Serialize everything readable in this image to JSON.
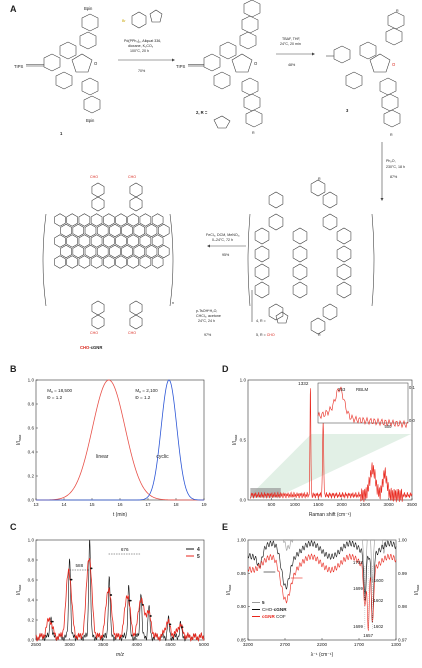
{
  "panels": {
    "a": "A",
    "b": "B",
    "c": "C",
    "d": "D",
    "e": "E"
  },
  "scheme": {
    "tips1": "TIPS",
    "tips2": "TIPS",
    "bpin_top": "Bpin",
    "bpin_bottom": "Bpin",
    "reagent_br": "Br",
    "step1": [
      "Pd(PPh₃)₄, Aliquat 336,",
      "dioxane, K₂CO₃",
      "100°C, 20 h"
    ],
    "step1_yield": "70%",
    "step2": [
      "TBAF, THF,",
      "24°C, 20 min"
    ],
    "step2_yield": "48%",
    "step3": [
      "Ph₂O,",
      "230°C, 18 h"
    ],
    "step3_yield": "87%",
    "step4": [
      "FeCl₃, DCM, MeNO₂,",
      "0–24°C, 72 h"
    ],
    "step4_yield": "95%",
    "step5": [
      "p-TsOH*H₂O,",
      "CHCl₃, acetone",
      "24°C, 24 h"
    ],
    "step5_yield": "97%",
    "cmpd1": "1",
    "cmpd2": "2, R =",
    "cmpd3": "3",
    "r_top": "R",
    "r_bottom": "R",
    "r_c2": "R",
    "r_c2_bottom": "R",
    "r_c3": "R",
    "r_c3_bottom": "R",
    "cmpd4": "4, R =",
    "cmpd5_prefix": "5, R = ",
    "cmpd5_cho": "CHO",
    "cho": "CHO",
    "product": "CHO-cGNR",
    "product_red": "CHO",
    "product_black": "-cGNR",
    "o_label": "O",
    "n_label": "n"
  },
  "chart_data": [
    {
      "panel": "B",
      "type": "line",
      "xlabel": "t (min)",
      "ylabel": "I/I",
      "ylabel_sub": "max",
      "xlim": [
        13,
        19
      ],
      "ylim": [
        0,
        1.0
      ],
      "xticks": [
        "13",
        "14",
        "15",
        "16",
        "17",
        "18",
        "19"
      ],
      "yticks": [
        "0.0",
        "0.2",
        "0.4",
        "0.6",
        "0.8",
        "1.0"
      ],
      "annotations": [
        {
          "line1": "M",
          "sub": "n",
          "line1_rest": " = 18,500",
          "line2": "Đ = 1.2"
        },
        {
          "line1": "M",
          "sub": "n",
          "line1_rest": " = 2,100",
          "line2": "Đ = 1.2"
        }
      ],
      "series": [
        {
          "name": "linear",
          "color": "#e8524a",
          "center": 15.6,
          "width": 0.58,
          "x": [
            13.0,
            13.5,
            14.0,
            14.5,
            15.0,
            15.3,
            15.6,
            15.9,
            16.2,
            16.5,
            16.8,
            17.1,
            17.4,
            17.8
          ],
          "y": [
            0.0,
            0.02,
            0.08,
            0.27,
            0.6,
            0.87,
            1.0,
            0.92,
            0.67,
            0.36,
            0.14,
            0.04,
            0.01,
            0.0
          ]
        },
        {
          "name": "cyclic",
          "color": "#2c56d6",
          "center": 17.75,
          "width": 0.28,
          "x": [
            16.9,
            17.1,
            17.3,
            17.5,
            17.65,
            17.75,
            17.85,
            18.0,
            18.2,
            18.4,
            18.6
          ],
          "y": [
            0.0,
            0.03,
            0.15,
            0.55,
            0.88,
            1.0,
            0.92,
            0.6,
            0.2,
            0.04,
            0.0
          ]
        }
      ]
    },
    {
      "panel": "C",
      "type": "line",
      "xlabel": "m/z",
      "ylabel": "I/I",
      "ylabel_sub": "max",
      "xlim": [
        2500,
        5000
      ],
      "ylim": [
        0,
        1.0
      ],
      "xticks": [
        "2500",
        "3000",
        "3500",
        "4000",
        "4500",
        "5000"
      ],
      "yticks": [
        "0.0",
        "0.2",
        "0.4",
        "0.6",
        "0.8",
        "1.0"
      ],
      "annotations": [
        {
          "text": "588"
        },
        {
          "text": "676"
        }
      ],
      "series": [
        {
          "name": "4",
          "color": "#111111",
          "peaks": [
            2720,
            3000,
            3298,
            3590,
            3880,
            4060,
            4180,
            4470,
            4650
          ]
        },
        {
          "name": "5",
          "color": "#e8261c",
          "peaks": [
            2700,
            2988,
            3290,
            3580,
            3860,
            4060,
            4170,
            4460,
            4640
          ]
        }
      ]
    },
    {
      "panel": "D",
      "type": "line",
      "xlabel": "Raman shift (cm⁻¹)",
      "ylabel": "I/I",
      "ylabel_sub": "max",
      "xlim": [
        0,
        3500
      ],
      "ylim": [
        0,
        1.0
      ],
      "xticks": [
        "500",
        "1000",
        "1500",
        "2000",
        "2500",
        "3000",
        "3500"
      ],
      "yticks": [
        "0.0",
        "0.5",
        "1.0"
      ],
      "peak_labels": [
        "1332",
        "1603"
      ],
      "inset": {
        "xticks": [
          "500"
        ],
        "yticks": [
          "0.0",
          "0.1"
        ],
        "peak_label": "253",
        "label": "RBLM"
      }
    },
    {
      "panel": "E",
      "type": "line",
      "xlabel": "λ⁻¹ (cm⁻¹)",
      "ylabel": "I/I",
      "ylabel_sub": "max",
      "y2label": "I/I",
      "y2label_sub": "max",
      "xlim": [
        3200,
        1300
      ],
      "ylim": [
        0.85,
        1.0
      ],
      "xticks": [
        "3200",
        "2700",
        "2200",
        "1700",
        "1300"
      ],
      "yticks": [
        "0.85",
        "0.90",
        "0.95",
        "1.00"
      ],
      "y2ticks": [
        "0.97",
        "0.98",
        "0.99",
        "1.00"
      ],
      "peak_labels_black": [
        "1699",
        "1602"
      ],
      "peak_labels_red": [
        "1702",
        "1600"
      ],
      "peak_labels_grey": [
        "1699",
        "1602"
      ],
      "peak_label_red_bottom": "1657",
      "legend": [
        {
          "label": "5",
          "color": "#9a9a9a",
          "red": "",
          "black": ""
        },
        {
          "label": "",
          "color": "#111111",
          "black_prefix": "CHO-",
          "bold": "cGNR"
        },
        {
          "label": "",
          "color": "#e8261c",
          "bold": "cGNR",
          "suffix": " COF"
        }
      ]
    }
  ]
}
